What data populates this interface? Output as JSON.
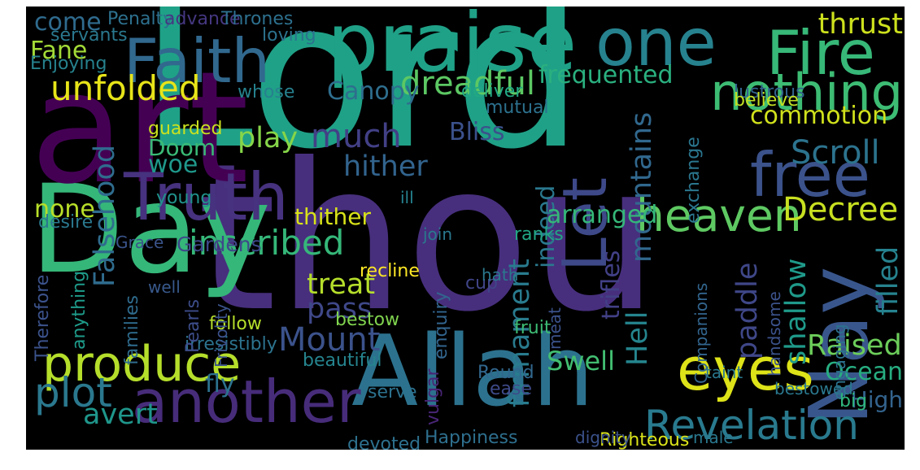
{
  "words": [
    {
      "text": "Lord",
      "color": "#1fa187"
    },
    {
      "text": "thou",
      "color": "#472f7d"
    },
    {
      "text": "Day",
      "color": "#35b779"
    },
    {
      "text": "art",
      "color": "#440154"
    },
    {
      "text": "Allah",
      "color": "#2c728e"
    },
    {
      "text": "praise",
      "color": "#1fa187"
    },
    {
      "text": "Faith",
      "color": "#31688e"
    },
    {
      "text": "Fire",
      "color": "#37b878"
    },
    {
      "text": "one",
      "color": "#26828e"
    },
    {
      "text": "Truth",
      "color": "#46327e"
    },
    {
      "text": "another",
      "color": "#472c7a"
    },
    {
      "text": "free",
      "color": "#3b528b"
    },
    {
      "text": "Nay",
      "color": "#39568c"
    },
    {
      "text": "eyes",
      "color": "#dde318"
    },
    {
      "text": "produce",
      "color": "#b5de2b"
    },
    {
      "text": "nothing",
      "color": "#3dbc74"
    },
    {
      "text": "Let",
      "color": "#3e4989"
    },
    {
      "text": "heaven",
      "color": "#5ec962"
    },
    {
      "text": "Revelation",
      "color": "#297a8e"
    },
    {
      "text": "plot",
      "color": "#2a788e"
    },
    {
      "text": "inscribed",
      "color": "#35b779"
    },
    {
      "text": "unfolded",
      "color": "#e7e419"
    },
    {
      "text": "Decree",
      "color": "#c8e020"
    },
    {
      "text": "Mount",
      "color": "#3b528b"
    },
    {
      "text": "much",
      "color": "#424086"
    },
    {
      "text": "Scroll",
      "color": "#2c738e"
    },
    {
      "text": "commotion",
      "color": "#d0e11c"
    },
    {
      "text": "frequented",
      "color": "#2ab07f"
    },
    {
      "text": "dreadful",
      "color": "#5cc863"
    },
    {
      "text": "Canopy",
      "color": "#2e6e8e"
    },
    {
      "text": "Swell",
      "color": "#42be71"
    },
    {
      "text": "Ocean",
      "color": "#27ad81"
    },
    {
      "text": "Raised",
      "color": "#6ccd5a"
    },
    {
      "text": "High",
      "color": "#33638d"
    },
    {
      "text": "filled",
      "color": "#26828e"
    },
    {
      "text": "Hell",
      "color": "#25858e"
    },
    {
      "text": "paddle",
      "color": "#3f4788"
    },
    {
      "text": "shallow",
      "color": "#1f9a8a"
    },
    {
      "text": "thrust",
      "color": "#cde11d"
    },
    {
      "text": "hither",
      "color": "#32648e"
    },
    {
      "text": "firmament",
      "color": "#297b8e"
    },
    {
      "text": "mountains",
      "color": "#31688e"
    },
    {
      "text": "Falsehood",
      "color": "#2f6c8e"
    },
    {
      "text": "treat",
      "color": "#b5de2b"
    },
    {
      "text": "pass",
      "color": "#3f4889"
    },
    {
      "text": "fly",
      "color": "#2c728e"
    },
    {
      "text": "woe",
      "color": "#1f988b"
    },
    {
      "text": "Doom",
      "color": "#3aba76"
    },
    {
      "text": "play",
      "color": "#86d549"
    },
    {
      "text": "avert",
      "color": "#1f968b"
    },
    {
      "text": "come",
      "color": "#2f6b8e"
    },
    {
      "text": "Fane",
      "color": "#a2da37"
    },
    {
      "text": "thither",
      "color": "#d8e219"
    },
    {
      "text": "indeed",
      "color": "#2a788e"
    },
    {
      "text": "trifles",
      "color": "#424086"
    },
    {
      "text": "none",
      "color": "#b8de29"
    },
    {
      "text": "arranged",
      "color": "#35b779"
    },
    {
      "text": "Gardens",
      "color": "#3e4989"
    },
    {
      "text": "Bliss",
      "color": "#3b518b"
    },
    {
      "text": "Happiness",
      "color": "#2e6f8e"
    },
    {
      "text": "Righteous",
      "color": "#dae319"
    },
    {
      "text": "devoted",
      "color": "#2d718e"
    },
    {
      "text": "beautiful",
      "color": "#25848e"
    },
    {
      "text": "bestow",
      "color": "#7fd34e"
    },
    {
      "text": "fruit",
      "color": "#3dbc74"
    },
    {
      "text": "irresistibly",
      "color": "#2c738e"
    },
    {
      "text": "Round",
      "color": "#31678e"
    },
    {
      "text": "ease",
      "color": "#3e4a89"
    },
    {
      "text": "serve",
      "color": "#2c718e"
    },
    {
      "text": "vulgar",
      "color": "#482576"
    },
    {
      "text": "follow",
      "color": "#b5de2b"
    },
    {
      "text": "Pearls",
      "color": "#3d4d8a"
    },
    {
      "text": "families",
      "color": "#2f6c8e"
    },
    {
      "text": "anything",
      "color": "#1e9b8a"
    },
    {
      "text": "Therefore",
      "color": "#3b528b"
    },
    {
      "text": "exchange",
      "color": "#2a768e"
    },
    {
      "text": "deliver",
      "color": "#22a884"
    },
    {
      "text": "mutual",
      "color": "#2c718e"
    },
    {
      "text": "recline",
      "color": "#fde725"
    },
    {
      "text": "lustrous",
      "color": "#33638d"
    },
    {
      "text": "believe",
      "color": "#c2df23"
    },
    {
      "text": "servants",
      "color": "#2a788e"
    },
    {
      "text": "Enjoying",
      "color": "#26828e"
    },
    {
      "text": "Penalty",
      "color": "#2d708e"
    },
    {
      "text": "advance",
      "color": "#453781"
    },
    {
      "text": "Thrones",
      "color": "#2d708e"
    },
    {
      "text": "loving",
      "color": "#2c728e"
    },
    {
      "text": "whose",
      "color": "#26818e"
    },
    {
      "text": "guarded",
      "color": "#cae11f"
    },
    {
      "text": "young",
      "color": "#20938c"
    },
    {
      "text": "desire",
      "color": "#2a788e"
    },
    {
      "text": "Grace",
      "color": "#3a538b"
    },
    {
      "text": "well",
      "color": "#38598c"
    },
    {
      "text": "ranks",
      "color": "#22a785"
    },
    {
      "text": "cup",
      "color": "#404588"
    },
    {
      "text": "enquiry",
      "color": "#32658e"
    },
    {
      "text": "join",
      "color": "#2a788e"
    },
    {
      "text": "hath",
      "color": "#2a788e"
    },
    {
      "text": "ill",
      "color": "#26828e"
    },
    {
      "text": "handsome",
      "color": "#3b528b"
    },
    {
      "text": "engaging",
      "color": "#2c728e"
    },
    {
      "text": "Companions",
      "color": "#32658e"
    },
    {
      "text": "taint",
      "color": "#2a788e"
    },
    {
      "text": "big",
      "color": "#2fb47c"
    },
    {
      "text": "bestowed",
      "color": "#2a788e"
    },
    {
      "text": "dignity",
      "color": "#3b528b"
    },
    {
      "text": "male",
      "color": "#2a788e"
    },
    {
      "text": "meat",
      "color": "#3b528b"
    },
    {
      "text": "Frivolity",
      "color": "#3b528b"
    }
  ]
}
